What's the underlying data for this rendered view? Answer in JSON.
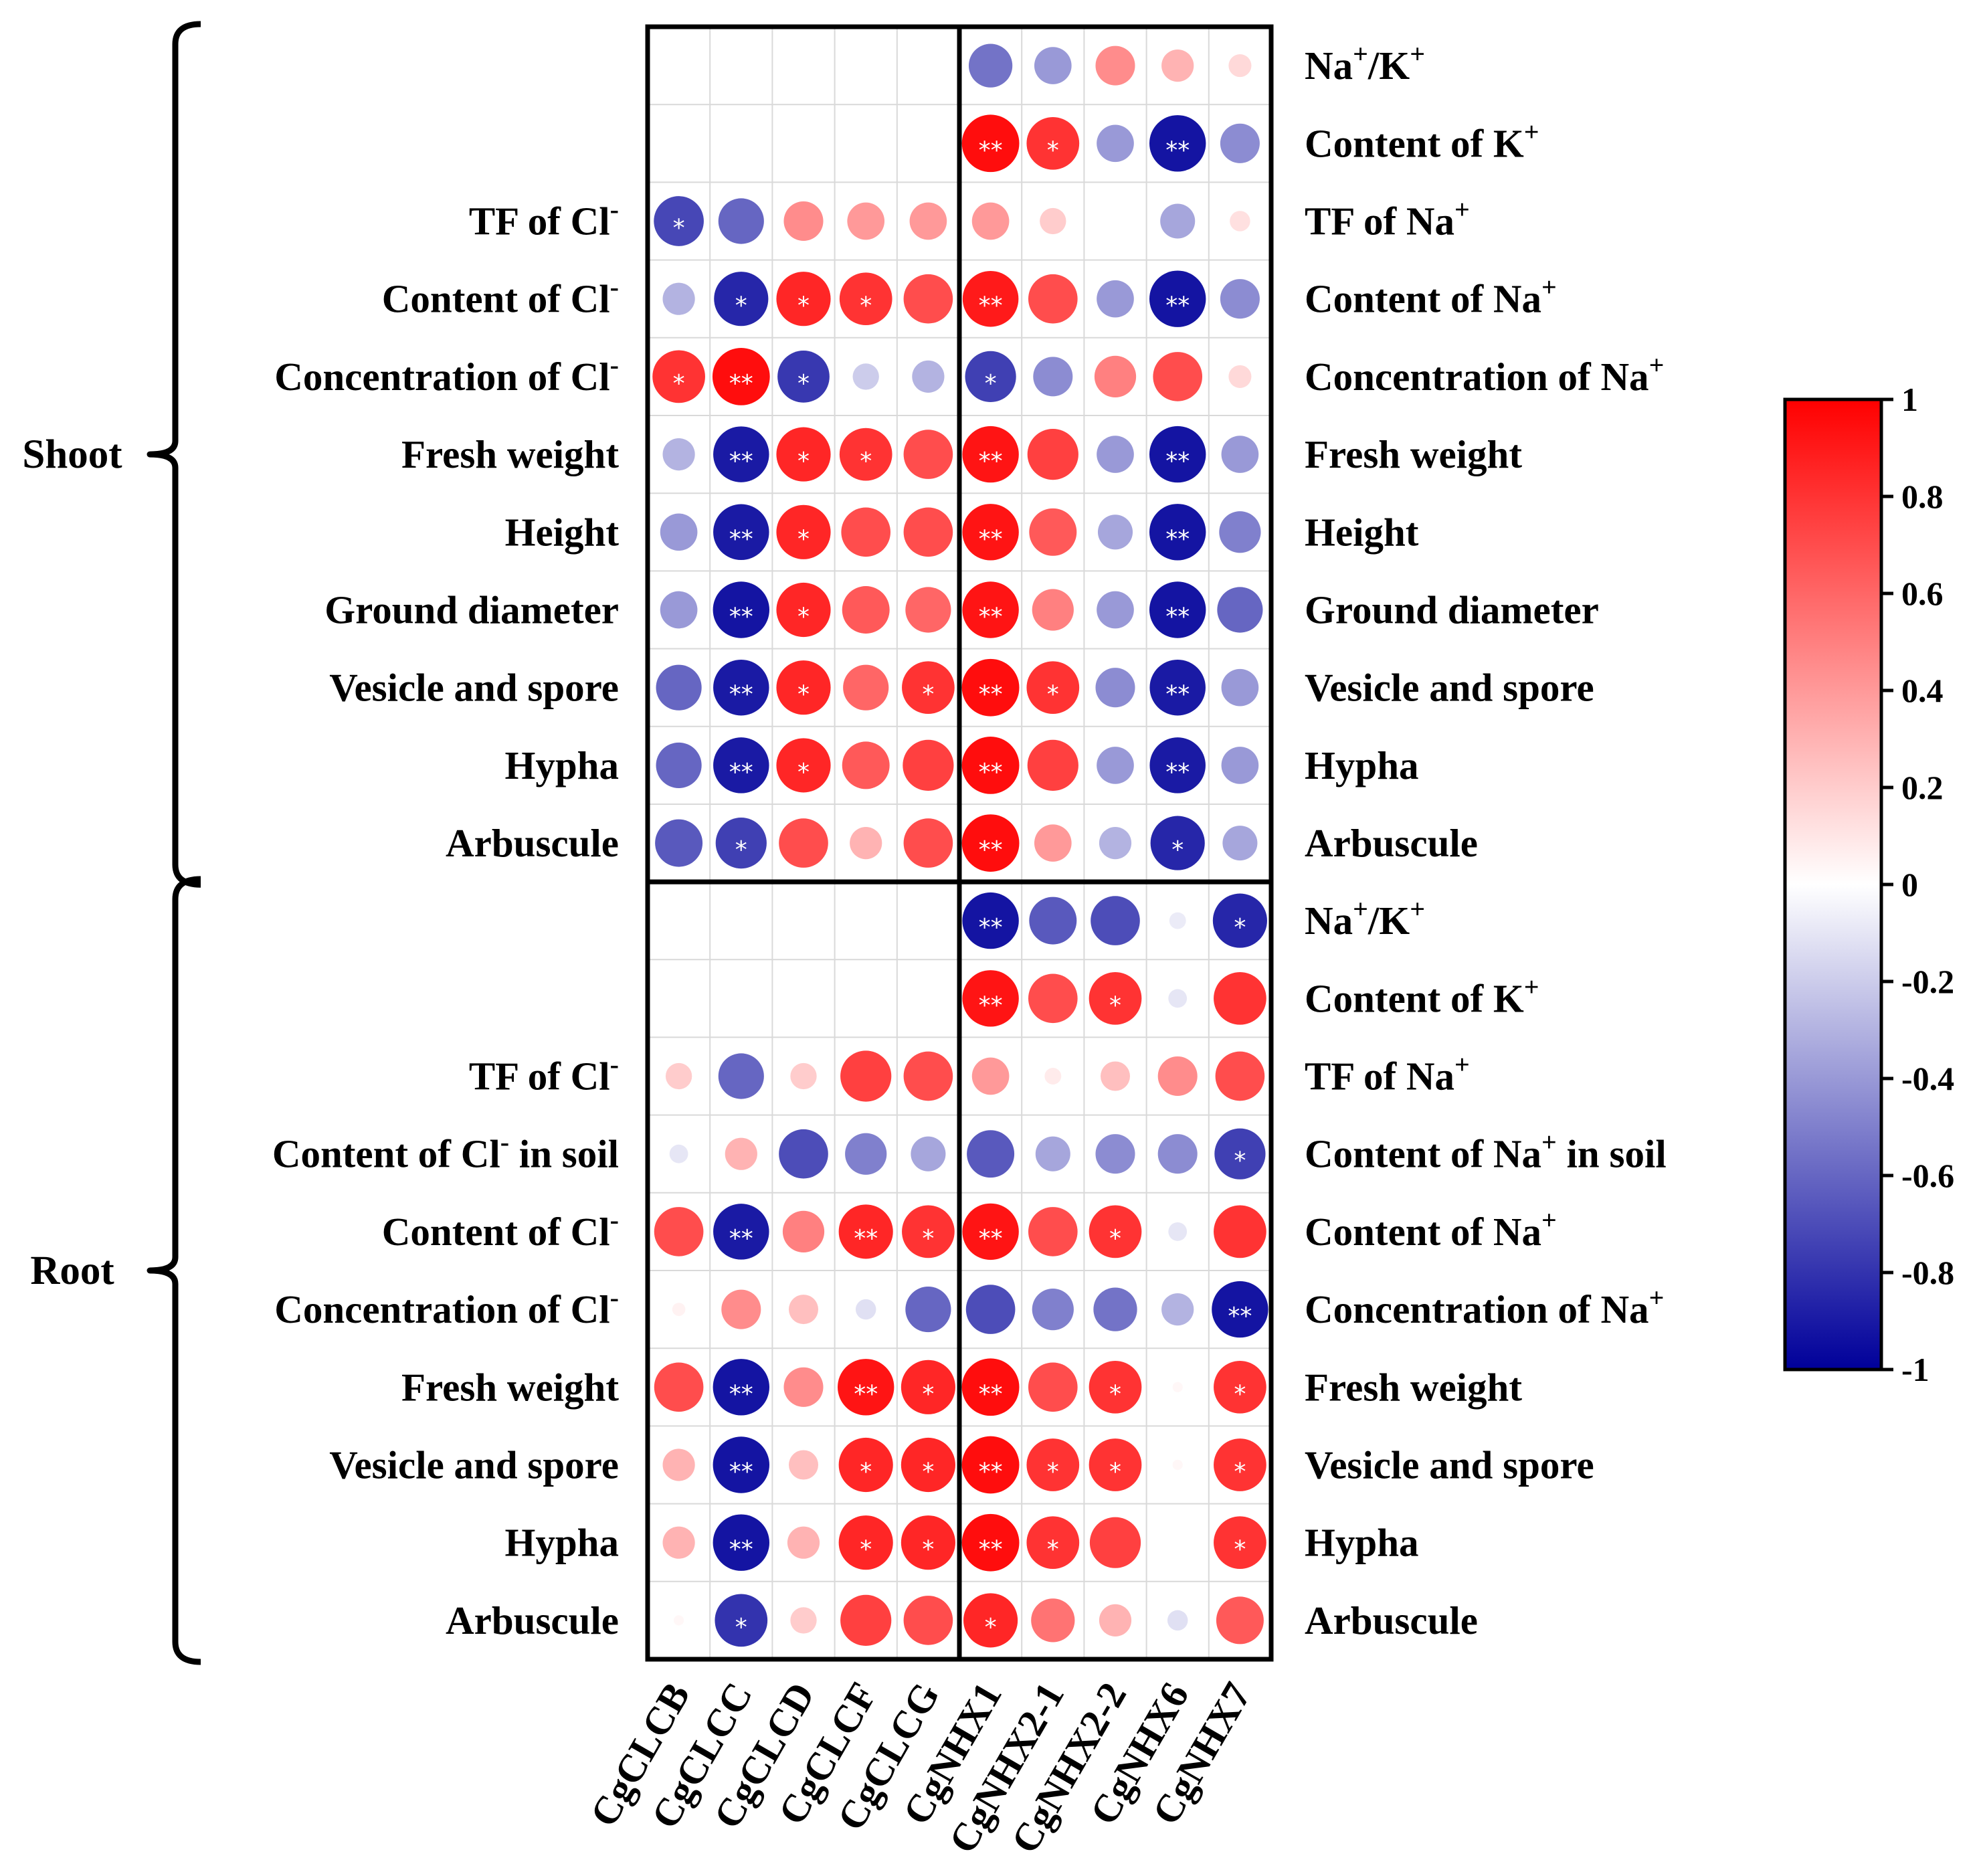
{
  "chart_data": {
    "type": "correlation-heatmap",
    "columns": [
      "CgCLCB",
      "CgCLCC",
      "CgCLCD",
      "CgCLCF",
      "CgCLCG",
      "CgNHX1",
      "CgNHX2-1",
      "CgNHX2-2",
      "CgNHX6",
      "CgNHX7"
    ],
    "colorbar": {
      "min": -1,
      "max": 1,
      "ticks": [
        "1",
        "0.8",
        "0.6",
        "0.4",
        "0.2",
        "0",
        "-0.2",
        "-0.4",
        "-0.6",
        "-0.8",
        "-1"
      ],
      "colors": {
        "negative": "#00009a",
        "zero": "#ffffff",
        "positive": "#ff0000"
      }
    },
    "groups": [
      {
        "name": "Shoot",
        "rows": [
          {
            "left": "",
            "right": [
              "Na",
              {
                "sup": "+"
              },
              "/K",
              {
                "sup": "+"
              }
            ],
            "values": [
              null,
              null,
              null,
              null,
              null,
              -0.55,
              -0.4,
              0.45,
              0.3,
              0.15
            ],
            "sig": [
              "",
              "",
              "",
              "",
              "",
              "",
              "",
              "",
              "",
              ""
            ]
          },
          {
            "left": "",
            "right": [
              "Content of K",
              {
                "sup": "+"
              }
            ],
            "values": [
              null,
              null,
              null,
              null,
              null,
              0.95,
              0.8,
              -0.4,
              -0.92,
              -0.45
            ],
            "sig": [
              "",
              "",
              "",
              "",
              "",
              "**",
              "*",
              "",
              "**",
              ""
            ]
          },
          {
            "left": [
              "TF of Cl",
              {
                "sup": "-"
              }
            ],
            "right": [
              "TF of Na",
              {
                "sup": "+"
              }
            ],
            "values": [
              -0.72,
              -0.6,
              0.45,
              0.4,
              0.4,
              0.4,
              0.2,
              null,
              -0.35,
              0.12
            ],
            "sig": [
              "*",
              "",
              "",
              "",
              "",
              "",
              "",
              "",
              "",
              ""
            ]
          },
          {
            "left": [
              "Content of Cl",
              {
                "sup": "-"
              }
            ],
            "right": [
              "Content of Na",
              {
                "sup": "+"
              }
            ],
            "values": [
              -0.3,
              -0.85,
              0.85,
              0.8,
              0.7,
              0.9,
              0.7,
              -0.4,
              -0.92,
              -0.45
            ],
            "sig": [
              "",
              "*",
              "*",
              "*",
              "",
              "**",
              "",
              "",
              "**",
              ""
            ]
          },
          {
            "left": [
              "Concentration of Cl",
              {
                "sup": "-"
              }
            ],
            "right": [
              "Concentration of Na",
              {
                "sup": "+"
              }
            ],
            "values": [
              0.8,
              0.95,
              -0.78,
              -0.2,
              -0.3,
              -0.75,
              -0.45,
              0.5,
              0.7,
              0.15
            ],
            "sig": [
              "*",
              "**",
              "*",
              "",
              "",
              "*",
              "",
              "",
              "",
              ""
            ]
          },
          {
            "left": "Fresh weight",
            "right": "Fresh weight",
            "values": [
              -0.3,
              -0.9,
              0.85,
              0.8,
              0.7,
              0.92,
              0.75,
              -0.4,
              -0.92,
              -0.4
            ],
            "sig": [
              "",
              "**",
              "*",
              "*",
              "",
              "**",
              "",
              "",
              "**",
              ""
            ]
          },
          {
            "left": "Height",
            "right": "Height",
            "values": [
              -0.4,
              -0.9,
              0.85,
              0.7,
              0.7,
              0.92,
              0.65,
              -0.35,
              -0.92,
              -0.5
            ],
            "sig": [
              "",
              "**",
              "*",
              "",
              "",
              "**",
              "",
              "",
              "**",
              ""
            ]
          },
          {
            "left": "Ground diameter",
            "right": "Ground diameter",
            "values": [
              -0.4,
              -0.92,
              0.85,
              0.65,
              0.6,
              0.92,
              0.5,
              -0.4,
              -0.92,
              -0.6
            ],
            "sig": [
              "",
              "**",
              "*",
              "",
              "",
              "**",
              "",
              "",
              "**",
              ""
            ]
          },
          {
            "left": "Vesicle and spore",
            "right": "Vesicle and spore",
            "values": [
              -0.6,
              -0.9,
              0.85,
              0.6,
              0.8,
              0.95,
              0.8,
              -0.45,
              -0.9,
              -0.4
            ],
            "sig": [
              "",
              "**",
              "*",
              "",
              "*",
              "**",
              "*",
              "",
              "**",
              ""
            ]
          },
          {
            "left": "Hypha",
            "right": "Hypha",
            "values": [
              -0.6,
              -0.9,
              0.85,
              0.65,
              0.75,
              0.95,
              0.75,
              -0.4,
              -0.9,
              -0.4
            ],
            "sig": [
              "",
              "**",
              "*",
              "",
              "",
              "**",
              "",
              "",
              "**",
              ""
            ]
          },
          {
            "left": "Arbuscule",
            "right": "Arbuscule",
            "values": [
              -0.65,
              -0.75,
              0.7,
              0.3,
              0.7,
              0.95,
              0.4,
              -0.3,
              -0.85,
              -0.35
            ],
            "sig": [
              "",
              "*",
              "",
              "",
              "",
              "**",
              "",
              "",
              "*",
              ""
            ]
          }
        ]
      },
      {
        "name": "Root",
        "rows": [
          {
            "left": "",
            "right": [
              "Na",
              {
                "sup": "+"
              },
              "/K",
              {
                "sup": "+"
              }
            ],
            "values": [
              null,
              null,
              null,
              null,
              null,
              -0.92,
              -0.65,
              -0.7,
              -0.08,
              -0.85
            ],
            "sig": [
              "",
              "",
              "",
              "",
              "",
              "**",
              "",
              "",
              "",
              "*"
            ]
          },
          {
            "left": "",
            "right": [
              "Content of K",
              {
                "sup": "+"
              }
            ],
            "values": [
              null,
              null,
              null,
              null,
              null,
              0.92,
              0.7,
              0.8,
              -0.1,
              0.8
            ],
            "sig": [
              "",
              "",
              "",
              "",
              "",
              "**",
              "",
              "*",
              "",
              ""
            ]
          },
          {
            "left": [
              "TF of Cl",
              {
                "sup": "-"
              }
            ],
            "right": [
              "TF of Na",
              {
                "sup": "+"
              }
            ],
            "values": [
              0.2,
              -0.6,
              0.2,
              0.75,
              0.7,
              0.4,
              0.08,
              0.25,
              0.45,
              0.7
            ],
            "sig": [
              "",
              "",
              "",
              "",
              "",
              "",
              "",
              "",
              "",
              ""
            ]
          },
          {
            "left": [
              "Content of Cl",
              {
                "sup": "-"
              },
              " in soil"
            ],
            "right": [
              "Content of Na",
              {
                "sup": "+"
              },
              " in soil"
            ],
            "values": [
              -0.1,
              0.3,
              -0.7,
              -0.5,
              -0.35,
              -0.65,
              -0.35,
              -0.45,
              -0.45,
              -0.75
            ],
            "sig": [
              "",
              "",
              "",
              "",
              "",
              "",
              "",
              "",
              "",
              "*"
            ]
          },
          {
            "left": [
              "Content of Cl",
              {
                "sup": "-"
              }
            ],
            "right": [
              "Content of Na",
              {
                "sup": "+"
              }
            ],
            "values": [
              0.7,
              -0.9,
              0.5,
              0.85,
              0.8,
              0.92,
              0.7,
              0.8,
              -0.1,
              0.8
            ],
            "sig": [
              "",
              "**",
              "",
              "**",
              "*",
              "**",
              "",
              "*",
              "",
              ""
            ]
          },
          {
            "left": [
              "Concentration of Cl",
              {
                "sup": "-"
              }
            ],
            "right": [
              "Concentration of Na",
              {
                "sup": "+"
              }
            ],
            "values": [
              0.05,
              0.45,
              0.25,
              -0.12,
              -0.6,
              -0.7,
              -0.5,
              -0.55,
              -0.3,
              -0.92
            ],
            "sig": [
              "",
              "",
              "",
              "",
              "",
              "",
              "",
              "",
              "",
              "**"
            ]
          },
          {
            "left": "Fresh weight",
            "right": "Fresh weight",
            "values": [
              0.7,
              -0.92,
              0.45,
              0.92,
              0.85,
              0.95,
              0.7,
              0.8,
              0.03,
              0.8
            ],
            "sig": [
              "",
              "**",
              "",
              "**",
              "*",
              "**",
              "",
              "*",
              "",
              "*"
            ]
          },
          {
            "left": "Vesicle and spore",
            "right": "Vesicle and spore",
            "values": [
              0.3,
              -0.92,
              0.25,
              0.85,
              0.85,
              0.95,
              0.8,
              0.8,
              0.03,
              0.8
            ],
            "sig": [
              "",
              "**",
              "",
              "*",
              "*",
              "**",
              "*",
              "*",
              "",
              "*"
            ]
          },
          {
            "left": "Hypha",
            "right": "Hypha",
            "values": [
              0.3,
              -0.92,
              0.3,
              0.85,
              0.85,
              0.95,
              0.8,
              0.75,
              null,
              0.8
            ],
            "sig": [
              "",
              "**",
              "",
              "*",
              "*",
              "**",
              "*",
              "",
              "",
              "*"
            ]
          },
          {
            "left": "Arbuscule",
            "right": "Arbuscule",
            "values": [
              0.03,
              -0.8,
              0.2,
              0.75,
              0.7,
              0.85,
              0.55,
              0.3,
              -0.12,
              0.65
            ],
            "sig": [
              "",
              "*",
              "",
              "",
              "",
              "*",
              "",
              "",
              "",
              ""
            ]
          }
        ]
      }
    ]
  }
}
